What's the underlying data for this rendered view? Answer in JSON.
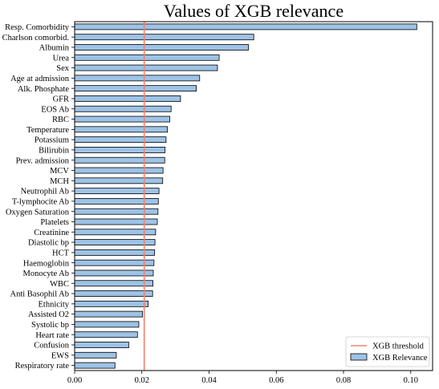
{
  "chart_data": {
    "type": "bar",
    "orientation": "horizontal",
    "title": "Values of XGB relevance",
    "xlabel": "",
    "ylabel": "",
    "xlim": [
      0,
      0.1065
    ],
    "xticks": [
      0.0,
      0.02,
      0.04,
      0.06,
      0.08,
      0.1
    ],
    "xtick_labels": [
      "0.00",
      "0.02",
      "0.04",
      "0.06",
      "0.08",
      "0.10"
    ],
    "grid": false,
    "legend_position": "lower-right",
    "categories": [
      "Resp. Comorbidity",
      "Charlson comorbid.",
      "Albumin",
      "Urea",
      "Sex",
      "Age at admission",
      "Alk. Phosphate",
      "GFR",
      "EOS Ab",
      "RBC",
      "Temperature",
      "Potassium",
      "Bilirubin",
      "Prev. admission",
      "MCV",
      "MCH",
      "Neutrophil Ab",
      "T-lymphocite Ab",
      "Oxygen Saturation",
      "Platelets",
      "Creatinine",
      "Diastolic bp",
      "HCT",
      "Haemoglobin",
      "Monocyte Ab",
      "WBC",
      "Anti Basophil Ab",
      "Ethnicity",
      "Assisted O2",
      "Systolic bp",
      "Heart rate",
      "Confusion",
      "EWS",
      "Respiratory rate"
    ],
    "series": [
      {
        "name": "XGB Relevance",
        "color": "#9dc3e6",
        "edge_color": "#000000",
        "values": [
          0.1018,
          0.0533,
          0.0517,
          0.043,
          0.0425,
          0.0372,
          0.0362,
          0.0315,
          0.0287,
          0.0283,
          0.0276,
          0.0272,
          0.0269,
          0.0268,
          0.0263,
          0.0262,
          0.0251,
          0.0249,
          0.0248,
          0.0246,
          0.0241,
          0.0239,
          0.0238,
          0.0236,
          0.0234,
          0.0233,
          0.0232,
          0.0219,
          0.0202,
          0.0191,
          0.0187,
          0.0161,
          0.0124,
          0.012
        ]
      }
    ],
    "threshold": {
      "name": "XGB threshold",
      "value": 0.0207,
      "color": "#f08070"
    }
  }
}
